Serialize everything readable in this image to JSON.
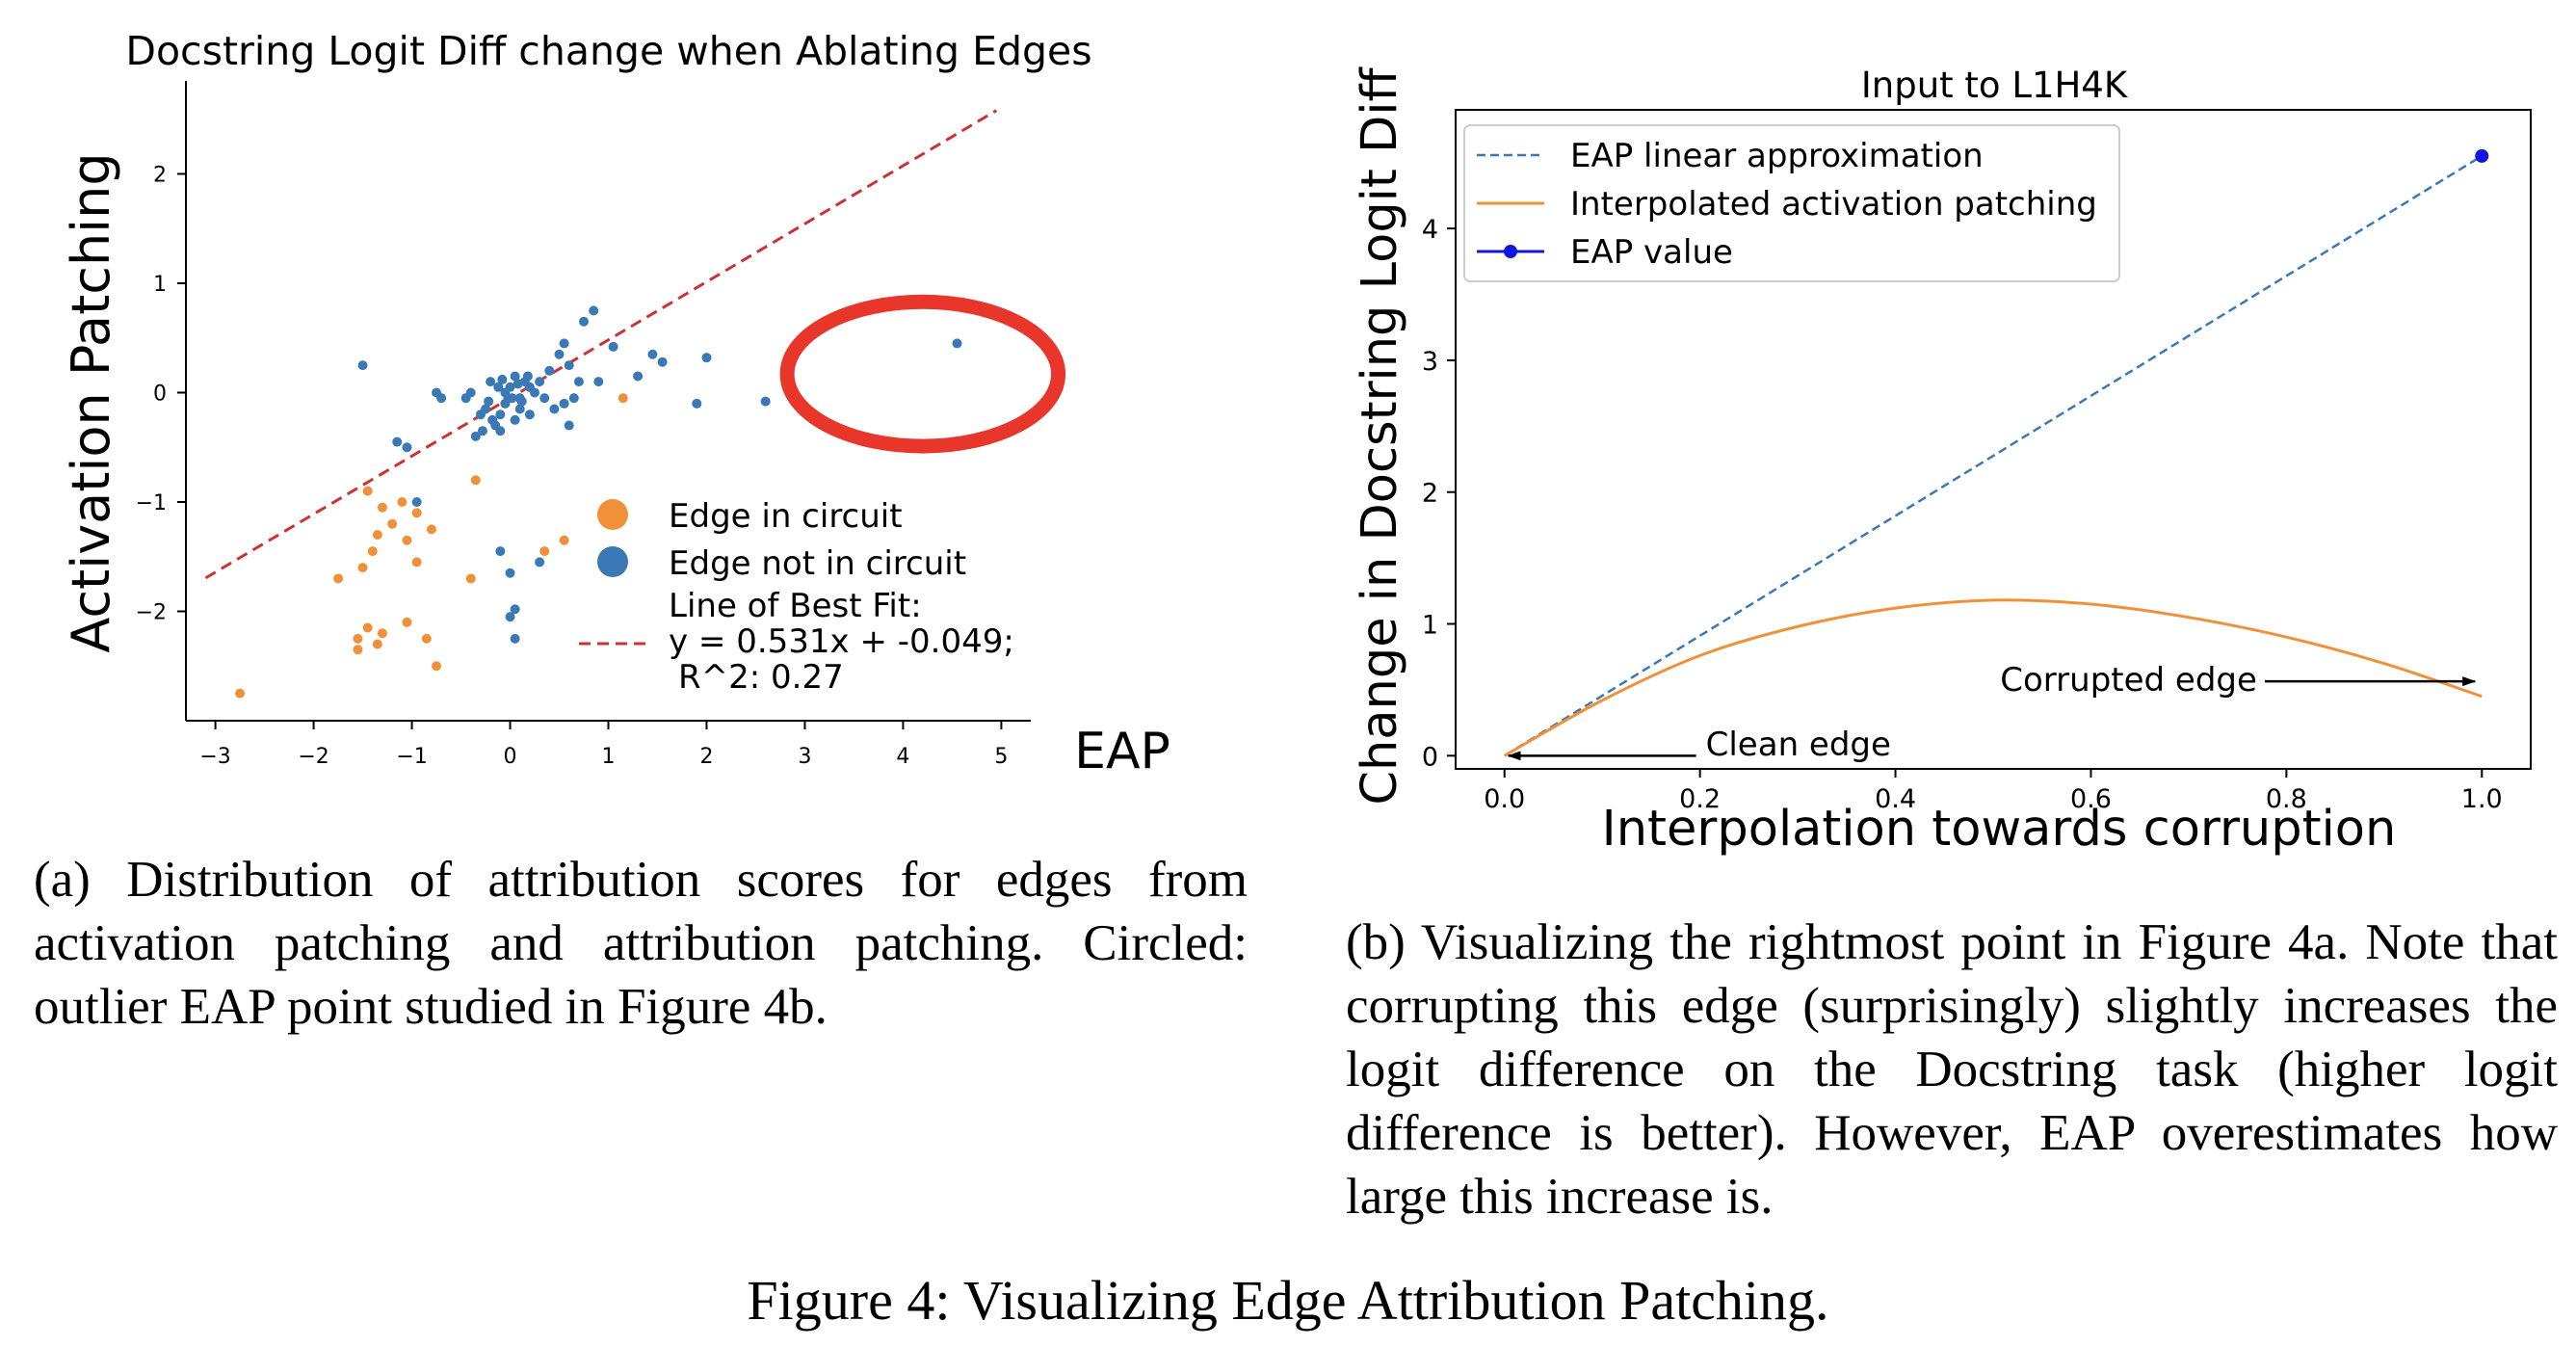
{
  "chart_data": [
    {
      "type": "scatter",
      "title": "Docstring Logit Diff change when Ablating Edges",
      "xlabel": "EAP",
      "ylabel": "Activation Patching",
      "xlim": [
        -3.3,
        5.3
      ],
      "ylim": [
        -3.0,
        2.85
      ],
      "xticks": [
        -3,
        -2,
        -1,
        0,
        1,
        2,
        3,
        4,
        5
      ],
      "yticks": [
        -2,
        -1,
        0,
        1,
        2
      ],
      "xtick_labels": [
        "−3",
        "−2",
        "−1",
        "0",
        "1",
        "2",
        "3",
        "4",
        "5"
      ],
      "ytick_labels": [
        "−2",
        "−1",
        "0",
        "1",
        "2"
      ],
      "grid": false,
      "legend_position": "lower-right",
      "series": [
        {
          "name": "Edge in circuit",
          "color": "#f0913a",
          "points": [
            [
              -1.45,
              -0.9
            ],
            [
              -1.3,
              -1.05
            ],
            [
              -1.1,
              -1.0
            ],
            [
              -0.95,
              -1.1
            ],
            [
              -1.2,
              -1.2
            ],
            [
              -1.35,
              -1.3
            ],
            [
              -0.8,
              -1.25
            ],
            [
              -1.05,
              -1.35
            ],
            [
              -1.4,
              -1.45
            ],
            [
              -1.5,
              -1.6
            ],
            [
              -1.75,
              -1.7
            ],
            [
              -1.55,
              -2.25
            ],
            [
              -1.45,
              -2.15
            ],
            [
              -1.3,
              -2.2
            ],
            [
              -1.05,
              -2.1
            ],
            [
              -1.35,
              -2.3
            ],
            [
              -1.55,
              -2.35
            ],
            [
              -0.85,
              -2.25
            ],
            [
              -0.75,
              -2.5
            ],
            [
              -2.75,
              -2.75
            ],
            [
              -0.35,
              -0.8
            ],
            [
              -0.4,
              -1.7
            ],
            [
              0.55,
              -1.35
            ],
            [
              0.35,
              -1.45
            ],
            [
              1.15,
              -0.05
            ],
            [
              -0.95,
              -1.55
            ]
          ]
        },
        {
          "name": "Edge not in circuit",
          "color": "#3b78b6",
          "points": [
            [
              4.55,
              0.45
            ],
            [
              2.6,
              -0.08
            ],
            [
              2.0,
              0.32
            ],
            [
              1.9,
              -0.1
            ],
            [
              1.55,
              0.28
            ],
            [
              1.45,
              0.35
            ],
            [
              1.3,
              0.15
            ],
            [
              1.05,
              0.42
            ],
            [
              0.85,
              0.75
            ],
            [
              0.75,
              0.65
            ],
            [
              0.55,
              0.45
            ],
            [
              0.5,
              0.35
            ],
            [
              0.6,
              0.25
            ],
            [
              0.7,
              0.1
            ],
            [
              0.4,
              0.2
            ],
            [
              0.3,
              0.1
            ],
            [
              0.35,
              -0.05
            ],
            [
              0.45,
              -0.15
            ],
            [
              0.55,
              -0.1
            ],
            [
              0.6,
              -0.3
            ],
            [
              0.2,
              0.05
            ],
            [
              0.15,
              0.1
            ],
            [
              0.1,
              -0.05
            ],
            [
              0.05,
              0.15
            ],
            [
              0.0,
              0.05
            ],
            [
              -0.05,
              -0.1
            ],
            [
              -0.1,
              -0.2
            ],
            [
              -0.15,
              -0.3
            ],
            [
              -0.2,
              0.1
            ],
            [
              -0.25,
              -0.15
            ],
            [
              -0.05,
              0.0
            ],
            [
              0.02,
              -0.05
            ],
            [
              0.08,
              0.08
            ],
            [
              -0.12,
              0.05
            ],
            [
              -0.18,
              -0.25
            ],
            [
              -0.3,
              -0.2
            ],
            [
              -0.35,
              -0.4
            ],
            [
              -0.28,
              -0.35
            ],
            [
              -0.1,
              -0.35
            ],
            [
              0.05,
              -0.25
            ],
            [
              0.1,
              -0.15
            ],
            [
              0.2,
              -0.2
            ],
            [
              -0.4,
              0.0
            ],
            [
              -0.45,
              -0.05
            ],
            [
              -0.7,
              -0.05
            ],
            [
              -0.75,
              0.0
            ],
            [
              -1.05,
              -0.5
            ],
            [
              -0.95,
              -1.0
            ],
            [
              -1.5,
              0.25
            ],
            [
              -1.15,
              -0.45
            ],
            [
              -0.1,
              -1.45
            ],
            [
              0.0,
              -1.65
            ],
            [
              0.05,
              -1.98
            ],
            [
              0.0,
              -2.05
            ],
            [
              0.05,
              -2.25
            ],
            [
              0.3,
              -1.55
            ],
            [
              0.9,
              0.1
            ],
            [
              0.65,
              -0.05
            ],
            [
              0.25,
              0.0
            ],
            [
              -0.02,
              -0.05
            ],
            [
              0.12,
              -0.08
            ],
            [
              -0.08,
              0.12
            ],
            [
              0.18,
              0.15
            ],
            [
              -0.22,
              -0.08
            ]
          ]
        }
      ],
      "fit_line": {
        "name": "Line of Best Fit:",
        "equation": "y = 0.531x + -0.049;",
        "r2": "R^2: 0.27",
        "slope": 0.531,
        "intercept": -0.049,
        "x_range": [
          -3.1,
          4.95
        ],
        "color": "#cc3333"
      },
      "highlight_ellipse": {
        "cx": 4.2,
        "cy": 0.17,
        "rx": 1.38,
        "ry": 0.66,
        "color": "#e8372a"
      }
    },
    {
      "type": "line",
      "title": "Input to L1H4K",
      "xlabel": "Interpolation towards corruption",
      "ylabel": "Change in Docstring Logit Diff",
      "xlim": [
        -0.05,
        1.05
      ],
      "ylim": [
        -0.1,
        4.9
      ],
      "xticks": [
        0.0,
        0.2,
        0.4,
        0.6,
        0.8,
        1.0
      ],
      "yticks": [
        0,
        1,
        2,
        3,
        4
      ],
      "xtick_labels": [
        "0.0",
        "0.2",
        "0.4",
        "0.6",
        "0.8",
        "1.0"
      ],
      "ytick_labels": [
        "0",
        "1",
        "2",
        "3",
        "4"
      ],
      "grid": false,
      "legend_position": "upper-left",
      "series": [
        {
          "name": "EAP linear approximation",
          "color": "#3b78b6",
          "style": "dashed",
          "x": [
            0.0,
            1.0
          ],
          "y": [
            0.0,
            4.55
          ]
        },
        {
          "name": "Interpolated activation patching",
          "color": "#f0913a",
          "style": "solid",
          "x": [
            0.0,
            0.1,
            0.2,
            0.3,
            0.4,
            0.5,
            0.6,
            0.7,
            0.8,
            0.9,
            1.0
          ],
          "y": [
            0.0,
            0.42,
            0.76,
            0.98,
            1.12,
            1.18,
            1.15,
            1.05,
            0.9,
            0.7,
            0.45
          ]
        },
        {
          "name": "EAP value",
          "color": "#1414e0",
          "style": "marker",
          "x": [
            1.0
          ],
          "y": [
            4.55
          ]
        }
      ],
      "annotations": [
        {
          "text": "Clean edge",
          "text_xy": [
            0.2,
            0.03
          ],
          "arrow_to": [
            0.0,
            0.0
          ]
        },
        {
          "text": "Corrupted edge",
          "text_xy": [
            0.77,
            0.52
          ],
          "arrow_to": [
            0.995,
            0.52
          ]
        }
      ]
    }
  ],
  "captions": {
    "a": "(a) Distribution of attribution scores for edges from activation patching and attribution patching. Circled: outlier EAP point studied in Figure 4b.",
    "b": "(b) Visualizing the rightmost point in Figure 4a. Note that corrupting this edge (surprisingly) slightly increases the logit difference on the Docstring task (higher logit difference is better). However, EAP overestimates how large this increase is.",
    "figure": "Figure 4: Visualizing Edge Attribution Patching."
  }
}
